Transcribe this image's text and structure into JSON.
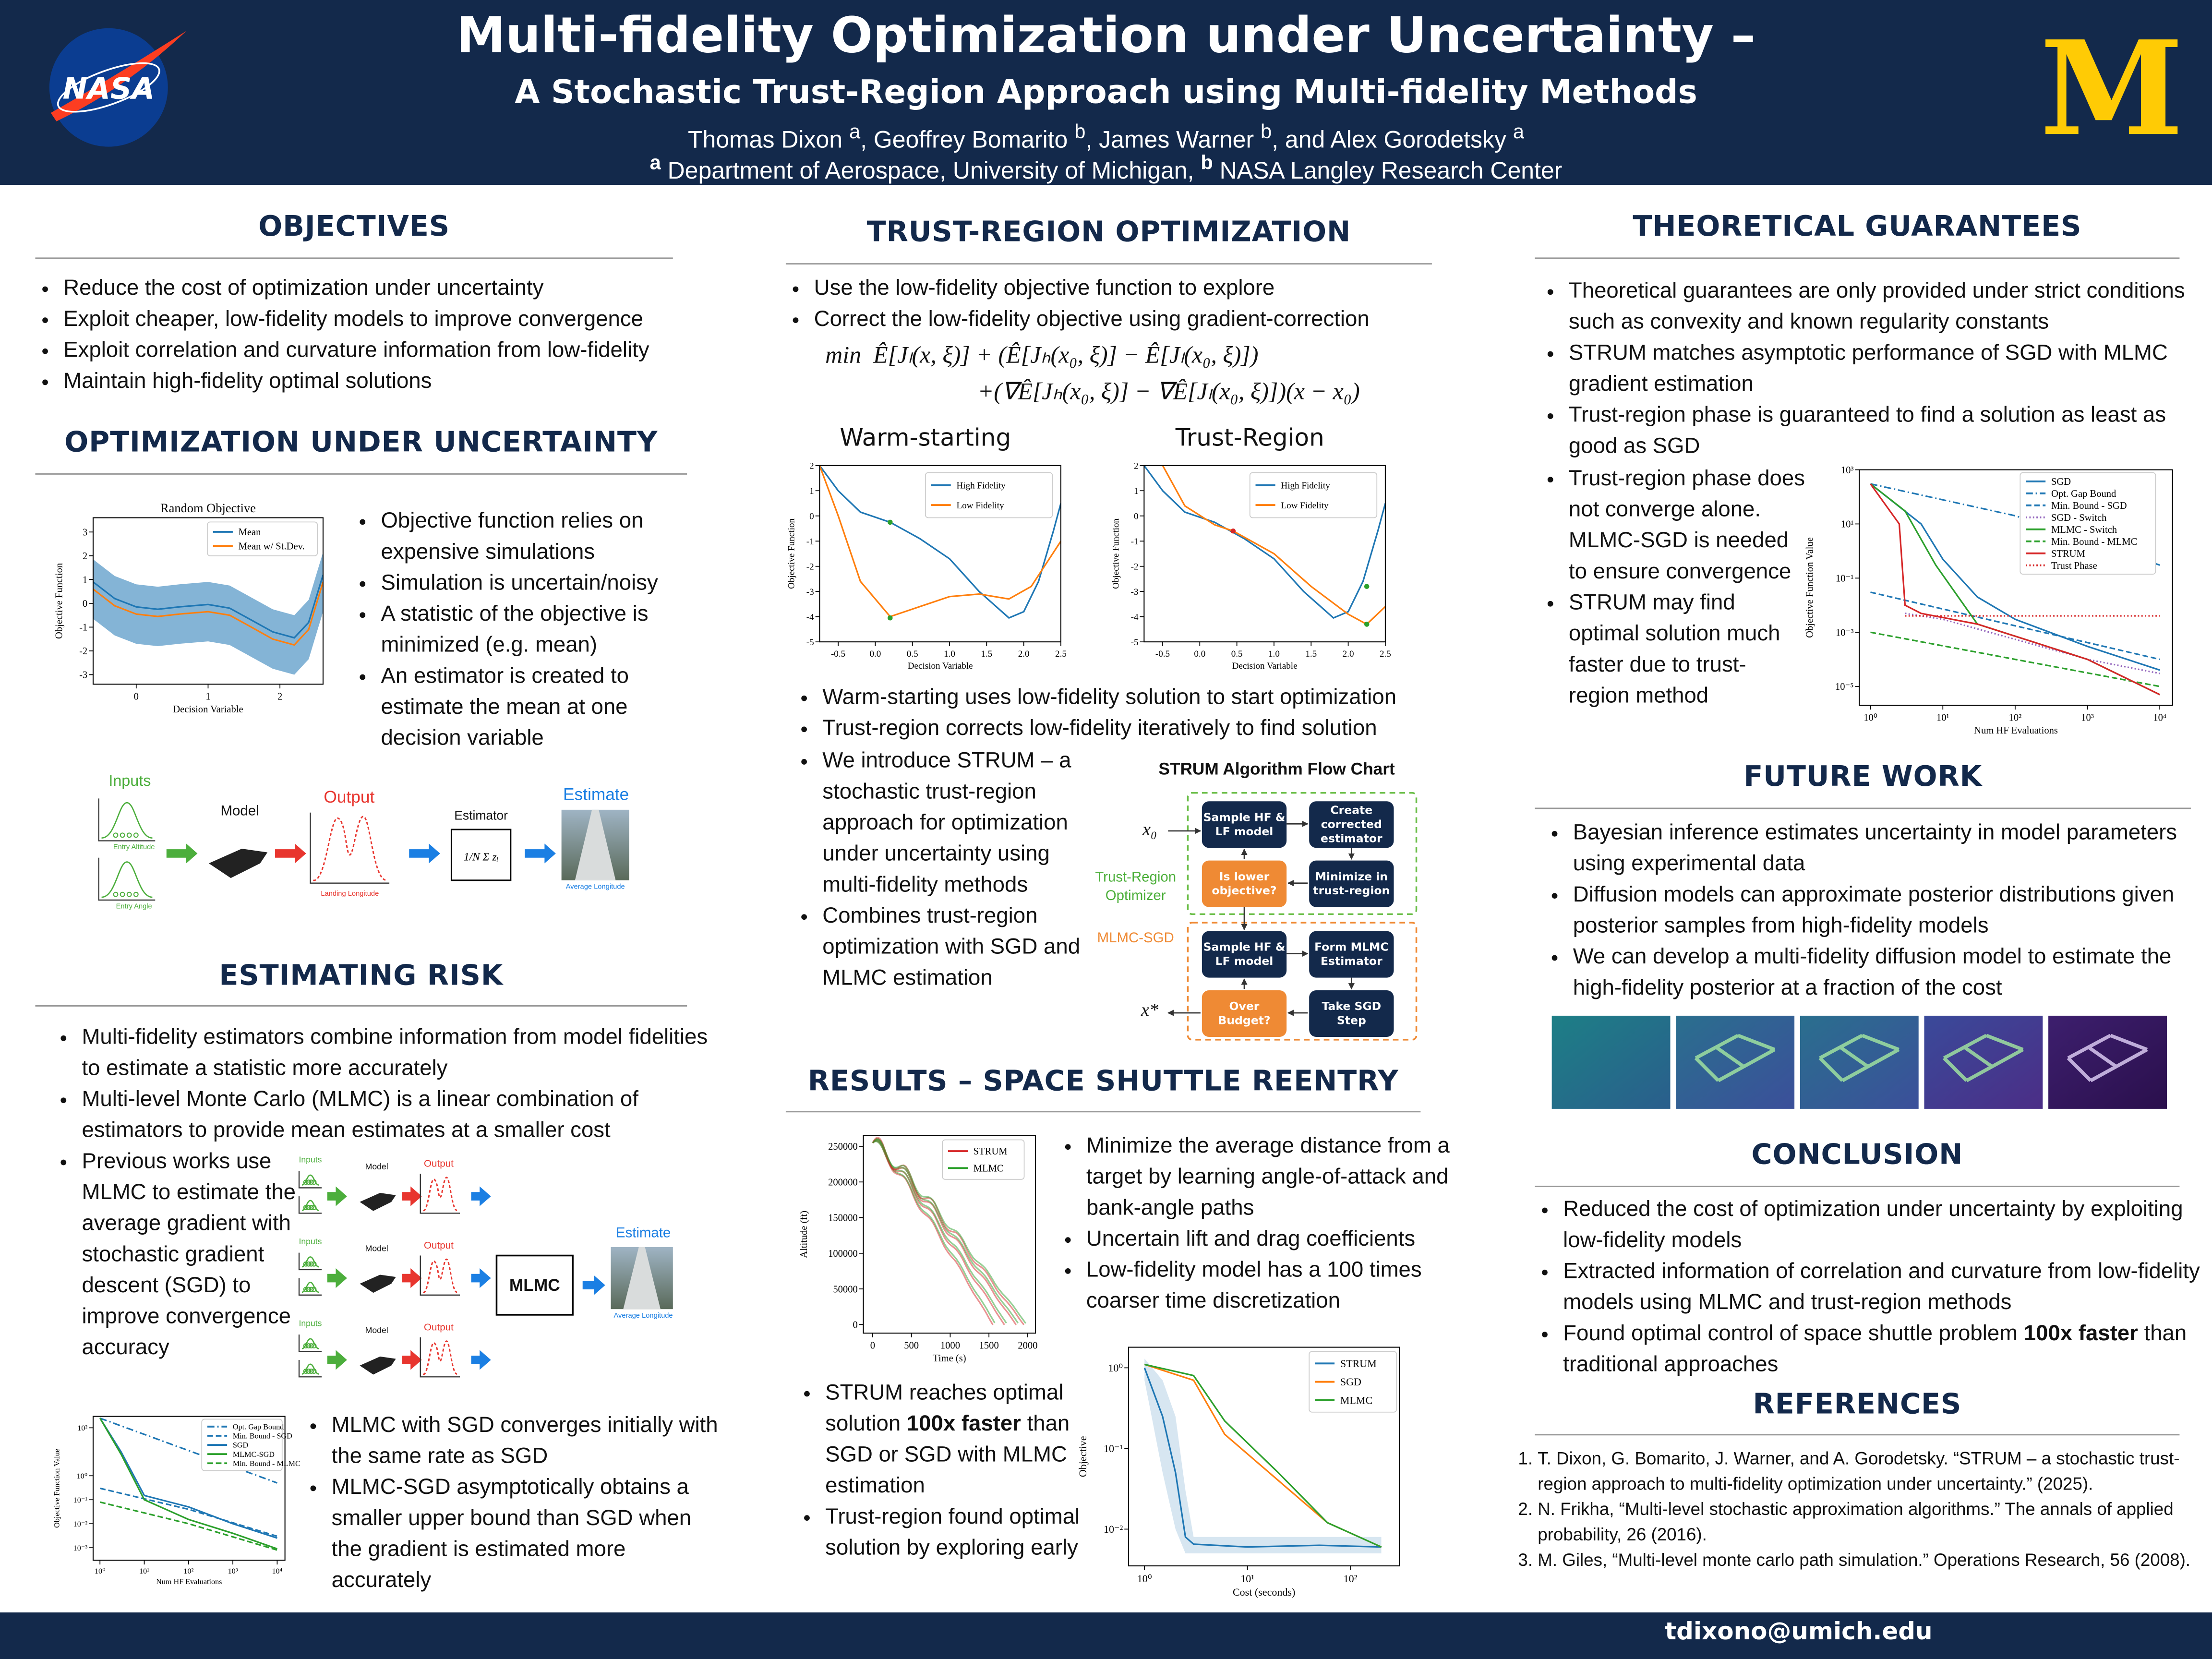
{
  "header": {
    "title": "Multi-fidelity Optimization under Uncertainty –",
    "subtitle": "A Stochastic Trust-Region Approach using Multi-fidelity Methods",
    "authors": [
      "Thomas Dixon ",
      "a",
      ", Geoffrey Bomarito ",
      "b",
      ", James Warner ",
      "b",
      ", and Alex Gorodetsky ",
      "a"
    ],
    "affiliations": [
      "a",
      " Department of Aerospace, University of Michigan, ",
      "b",
      " NASA Langley Research Center"
    ],
    "left_logo": "NASA",
    "right_logo": "M"
  },
  "objectives": {
    "heading": "OBJECTIVES",
    "bullets": [
      "Reduce the cost of optimization under uncertainty",
      "Exploit cheaper, low-fidelity models to improve convergence",
      "Exploit correlation and curvature information from low-fidelity",
      "Maintain high-fidelity optimal solutions"
    ]
  },
  "ouu": {
    "heading": "OPTIMIZATION UNDER UNCERTAINTY",
    "plot": {
      "title": "Random Objective",
      "xlabel": "Decision Variable",
      "ylabel": "Objective Function",
      "legend": [
        {
          "name": "Mean",
          "color": "#1f77b4"
        },
        {
          "name": "Mean w/ St.Dev.",
          "color": "#ff7f0e"
        }
      ],
      "xlim": [
        -0.6,
        2.6
      ],
      "ylim": [
        -3.4,
        3.6
      ],
      "xticks": [
        0,
        1,
        2
      ],
      "yticks": [
        -3,
        -2,
        -1,
        0,
        1,
        2,
        3
      ]
    },
    "bullets": [
      "Objective function relies on expensive simulations",
      "Simulation is uncertain/noisy",
      "A statistic of the objective is minimized (e.g. mean)",
      "An estimator is created to estimate the mean at one decision variable"
    ],
    "diagram": {
      "inputs": "Inputs",
      "model": "Model",
      "output": "Output",
      "estimator": "Estimator",
      "estimator_formula": "1/N Σ zᵢ",
      "estimate": "Estimate",
      "input_labels": [
        "Entry Altitude",
        "Entry Angle"
      ],
      "output_label": "Landing Longitude",
      "estimate_label": "Average Longitude"
    }
  },
  "risk": {
    "heading": "ESTIMATING RISK",
    "bullets": [
      "Multi-fidelity estimators combine information from model fidelities to estimate a statistic more accurately",
      "Multi-level Monte Carlo (MLMC) is a linear combination of estimators to provide mean estimates at a smaller cost"
    ],
    "bullets2": [
      "Previous works use MLMC to estimate the average gradient with stochastic gradient descent (SGD) to improve convergence accuracy"
    ],
    "diagram": {
      "inputs": "Inputs",
      "model": "Model",
      "output": "Output",
      "combiner": "MLMC",
      "estimate": "Estimate",
      "estimate_label": "Average Longitude"
    },
    "plot": {
      "xlabel": "Num HF Evaluations",
      "ylabel": "Objective Function Value",
      "xscale": "log",
      "yscale": "log",
      "xlim": [
        0.7,
        15000
      ],
      "ylim": [
        0.0003,
        300
      ],
      "legend": [
        {
          "name": "Opt. Gap Bound",
          "color": "#1f77b4",
          "style": "dashdot"
        },
        {
          "name": "Min. Bound - SGD",
          "color": "#1f77b4",
          "style": "dashed"
        },
        {
          "name": "SGD",
          "color": "#1f77b4",
          "style": "solid"
        },
        {
          "name": "MLMC-SGD",
          "color": "#2ca02c",
          "style": "solid"
        },
        {
          "name": "Min. Bound - MLMC",
          "color": "#2ca02c",
          "style": "dashed"
        }
      ],
      "xticks": [
        {
          "value": 1,
          "label": "10⁰"
        },
        {
          "value": 10,
          "label": "10¹"
        },
        {
          "value": 100,
          "label": "10²"
        },
        {
          "value": 1000,
          "label": "10³"
        },
        {
          "value": 10000,
          "label": "10⁴"
        }
      ],
      "yticks": [
        {
          "value": 100,
          "label": "10²"
        },
        {
          "value": 1,
          "label": "10⁰"
        },
        {
          "value": 0.1,
          "label": "10⁻¹"
        },
        {
          "value": 0.01,
          "label": "10⁻²"
        },
        {
          "value": 0.001,
          "label": "10⁻³"
        }
      ]
    },
    "bullets3": [
      "MLMC with SGD converges initially with the same rate as SGD",
      "MLMC-SGD asymptotically obtains a smaller upper bound than SGD when the gradient is estimated more accurately"
    ]
  },
  "trust_region": {
    "heading": "TRUST-REGION OPTIMIZATION",
    "bullets": [
      "Use the low-fidelity objective function to explore",
      "Correct the low-fidelity objective using gradient-correction"
    ],
    "formula": [
      "min  Ê[Jₗ(x, ξ)] + (Ê[Jₕ(x₀, ξ)] − Ê[Jₗ(x₀, ξ)])",
      "+(∇Ê[Jₕ(x₀, ξ)] − ∇Ê[Jₗ(x₀, ξ)])(x − x₀)"
    ],
    "plots": [
      {
        "title": "Warm-starting",
        "xlabel": "Decision Variable",
        "ylabel": "Objective Function",
        "legend": [
          {
            "name": "High Fidelity",
            "color": "#1f77b4"
          },
          {
            "name": "Low Fidelity",
            "color": "#ff7f0e"
          }
        ],
        "xlim": [
          -0.75,
          2.5
        ],
        "ylim": [
          -5,
          2
        ],
        "xticks": [
          -0.5,
          {
            "value": 0,
            "label": "0.0"
          },
          0.5,
          {
            "value": 1,
            "label": "1.0"
          },
          1.5,
          {
            "value": 2,
            "label": "2.0"
          },
          2.5
        ],
        "yticks": [
          -5,
          -4,
          -3,
          -2,
          -1,
          0,
          1,
          2
        ]
      },
      {
        "title": "Trust-Region",
        "xlabel": "Decision Variable",
        "ylabel": "Objective Function",
        "legend": [
          {
            "name": "High Fidelity",
            "color": "#1f77b4"
          },
          {
            "name": "Low Fidelity",
            "color": "#ff7f0e"
          }
        ],
        "xlim": [
          -0.75,
          2.5
        ],
        "ylim": [
          -5,
          2
        ],
        "xticks": [
          -0.5,
          {
            "value": 0,
            "label": "0.0"
          },
          0.5,
          {
            "value": 1,
            "label": "1.0"
          },
          1.5,
          {
            "value": 2,
            "label": "2.0"
          },
          2.5
        ],
        "yticks": [
          -5,
          -4,
          -3,
          -2,
          -1,
          0,
          1,
          2
        ]
      }
    ],
    "bullets2": [
      "Warm-starting uses low-fidelity solution to start optimization",
      "Trust-region corrects low-fidelity iteratively to find solution"
    ],
    "bullets3": [
      "We introduce STRUM – a stochastic trust-region approach for optimization under uncertainty using multi-fidelity methods",
      "Combines trust-region optimization with SGD and MLMC estimation"
    ],
    "flowchart": {
      "title": "STRUM Algorithm Flow Chart",
      "nodes": [
        "Sample HF & LF model",
        "Create corrected estimator",
        "Minimize in trust-region",
        "Is lower objective?",
        "Sample HF & LF model",
        "Form MLMC Estimator",
        "Take SGD Step",
        "Over Budget?"
      ],
      "start": "x₀",
      "end": "x*",
      "groups": [
        "Trust-Region Optimizer",
        "MLMC-SGD"
      ]
    }
  },
  "results": {
    "heading": "RESULTS – SPACE SHUTTLE REENTRY",
    "plot": {
      "xlabel": "Time (s)",
      "ylabel": "Altitude (ft)",
      "legend": [
        {
          "name": "STRUM",
          "color": "#d62728"
        },
        {
          "name": "MLMC",
          "color": "#2ca02c"
        }
      ],
      "xlim": [
        -120,
        2100
      ],
      "ylim": [
        -12000,
        265000
      ],
      "xticks": [
        0,
        500,
        1000,
        1500,
        2000
      ],
      "yticks": [
        0,
        50000,
        100000,
        150000,
        200000,
        250000
      ]
    },
    "bullets": [
      "Minimize the average distance from a target by learning angle-of-attack and bank-angle paths",
      "Uncertain lift and drag coefficients",
      "Low-fidelity model has a 100 times coarser time discretization"
    ],
    "bullets2": [
      [
        "STRUM reaches optimal solution ",
        "100x faster",
        " than SGD or SGD with MLMC estimation"
      ],
      "Trust-region found optimal solution by exploring early"
    ],
    "plot2": {
      "xlabel": "Cost (seconds)",
      "ylabel": "Objective",
      "xscale": "log",
      "yscale": "log",
      "xlim": [
        0.7,
        300
      ],
      "ylim": [
        0.0035,
        1.8
      ],
      "legend": [
        {
          "name": "STRUM",
          "color": "#1f77b4"
        },
        {
          "name": "SGD",
          "color": "#ff7f0e"
        },
        {
          "name": "MLMC",
          "color": "#2ca02c"
        }
      ],
      "xticks": [
        {
          "value": 1,
          "label": "10⁰"
        },
        {
          "value": 10,
          "label": "10¹"
        },
        {
          "value": 100,
          "label": "10²"
        }
      ],
      "yticks": [
        {
          "value": 1,
          "label": "10⁰"
        },
        {
          "value": 0.1,
          "label": "10⁻¹"
        },
        {
          "value": 0.01,
          "label": "10⁻²"
        }
      ]
    }
  },
  "theory": {
    "heading": "THEORETICAL GUARANTEES",
    "bullets": [
      "Theoretical guarantees are only provided under strict conditions such as convexity and known regularity constants",
      "STRUM matches asymptotic performance of SGD with MLMC gradient estimation",
      "Trust-region phase is guaranteed to find a solution as least as good as SGD"
    ],
    "bullets2": [
      "Trust-region phase does not converge alone. MLMC-SGD is needed to ensure convergence",
      "STRUM may find optimal solution much faster due to trust-region method"
    ],
    "plot": {
      "xlabel": "Num HF Evaluations",
      "ylabel": "Objective Function Value",
      "xscale": "log",
      "yscale": "log",
      "xlim": [
        0.7,
        15000
      ],
      "ylim": [
        2e-06,
        1000
      ],
      "legend": [
        {
          "name": "SGD",
          "color": "#1f77b4",
          "style": "solid"
        },
        {
          "name": "Opt. Gap Bound",
          "color": "#1f77b4",
          "style": "dashdot"
        },
        {
          "name": "Min. Bound - SGD",
          "color": "#1f77b4",
          "style": "dashed"
        },
        {
          "name": "SGD - Switch",
          "color": "#9467bd",
          "style": "dotted"
        },
        {
          "name": "MLMC - Switch",
          "color": "#2ca02c",
          "style": "solid"
        },
        {
          "name": "Min. Bound - MLMC",
          "color": "#2ca02c",
          "style": "dashed"
        },
        {
          "name": "STRUM",
          "color": "#d62728",
          "style": "solid"
        },
        {
          "name": "Trust Phase",
          "color": "#d62728",
          "style": "dotted"
        }
      ],
      "xticks": [
        {
          "value": 1,
          "label": "10⁰"
        },
        {
          "value": 10,
          "label": "10¹"
        },
        {
          "value": 100,
          "label": "10²"
        },
        {
          "value": 1000,
          "label": "10³"
        },
        {
          "value": 10000,
          "label": "10⁴"
        }
      ],
      "yticks": [
        {
          "value": 1000,
          "label": "10³"
        },
        {
          "value": 10,
          "label": "10¹"
        },
        {
          "value": 0.1,
          "label": "10⁻¹"
        },
        {
          "value": 0.001,
          "label": "10⁻³"
        },
        {
          "value": 1e-05,
          "label": "10⁻⁵"
        }
      ]
    }
  },
  "future": {
    "heading": "FUTURE WORK",
    "bullets": [
      "Bayesian inference estimates uncertainty in model parameters using experimental data",
      "Diffusion models can approximate posterior distributions given posterior samples from high-fidelity models",
      "We can develop a multi-fidelity diffusion model to estimate the high-fidelity posterior at a fraction of the cost"
    ]
  },
  "conclusion": {
    "heading": "CONCLUSION",
    "bullets": [
      "Reduced the cost of optimization under uncertainty by exploiting low-fidelity models",
      "Extracted information of correlation and curvature from low-fidelity models using MLMC and trust-region methods",
      [
        "Found optimal control of space shuttle problem ",
        "100x faster",
        " than traditional approaches"
      ]
    ]
  },
  "references": {
    "heading": "REFERENCES",
    "items": [
      "T. Dixon, G. Bomarito, J. Warner, and A. Gorodetsky. “STRUM – a stochastic trust-region approach to multi-fidelity optimization under uncertainty.” (2025).",
      "N. Frikha, “Multi-level stochastic approximation algorithms.” The annals of applied probability, 26 (2016).",
      "M. Giles, “Multi-level monte carlo path simulation.” Operations Research, 56 (2008)."
    ]
  },
  "footer": {
    "email": "tdixono@umich.edu"
  }
}
